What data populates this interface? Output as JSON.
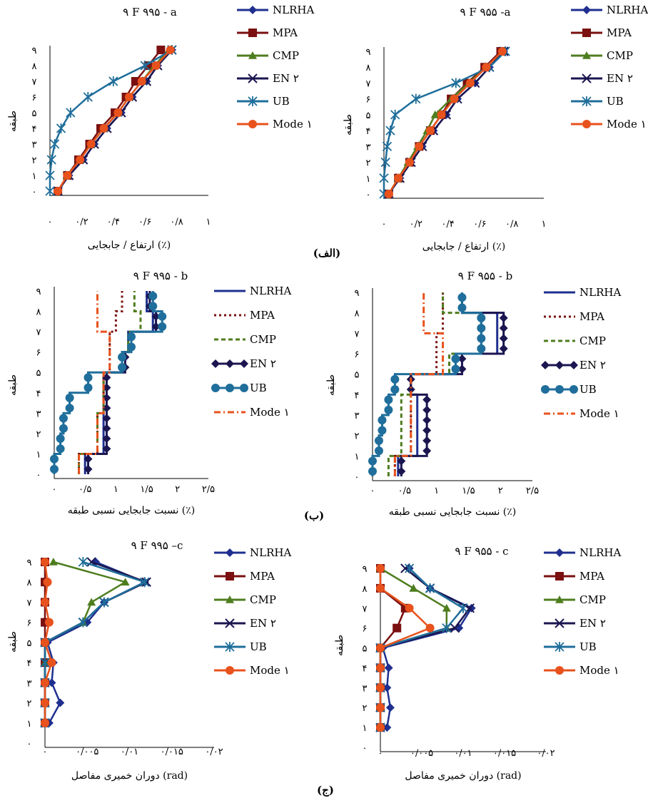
{
  "section_labels": [
    "(الف)",
    "(ب)",
    "(ج)"
  ],
  "series_style": {
    "NLRHA": {
      "color": "#1f2f8f",
      "marker": "diamond",
      "dash": ""
    },
    "MPA": {
      "color": "#7a1010",
      "marker": "square",
      "dash": "3,4"
    },
    "CMP": {
      "color": "#4e7d1e",
      "marker": "triangle",
      "dash": "6,4"
    },
    "EN2": {
      "color": "#1b1650",
      "marker": "x",
      "dash": ""
    },
    "UB": {
      "color": "#1f6e9b",
      "marker": "star",
      "dash": ""
    },
    "Mode1": {
      "color": "#e8521c",
      "marker": "circle",
      "dash": "9,4,2,4"
    }
  },
  "chart_data": [
    {
      "id": "a995",
      "type": "line",
      "title": "۹ F ۹۹۵ - a",
      "xlabel": "ارتفاع / جابجایی (٪)",
      "ylabel": "طبقه",
      "xlim": [
        0,
        1
      ],
      "ylim": [
        0,
        9
      ],
      "xticks": [
        {
          "v": 0,
          "l": "۰"
        },
        {
          "v": 0.2,
          "l": "۰/۲"
        },
        {
          "v": 0.4,
          "l": "۰/۴"
        },
        {
          "v": 0.6,
          "l": "۰/۶"
        },
        {
          "v": 0.8,
          "l": "۰/۸"
        },
        {
          "v": 1,
          "l": "۱"
        }
      ],
      "yticks": [
        "۰",
        "۱",
        "۲",
        "۳",
        "۴",
        "۵",
        "۶",
        "۷",
        "۸",
        "۹"
      ],
      "legend": [
        "NLRHA",
        "MPA",
        "CMP",
        "EN ۲",
        "UB",
        "Mode ۱"
      ],
      "series": [
        {
          "key": "NLRHA",
          "values": [
            0.05,
            0.12,
            0.21,
            0.28,
            0.36,
            0.45,
            0.52,
            0.61,
            0.68,
            0.77
          ]
        },
        {
          "key": "MPA",
          "values": [
            0.05,
            0.11,
            0.18,
            0.25,
            0.32,
            0.41,
            0.48,
            0.54,
            0.62,
            0.7
          ]
        },
        {
          "key": "CMP",
          "values": [
            0.05,
            0.11,
            0.19,
            0.26,
            0.34,
            0.43,
            0.5,
            0.58,
            0.66,
            0.75
          ]
        },
        {
          "key": "EN2",
          "values": [
            0.05,
            0.12,
            0.21,
            0.28,
            0.36,
            0.45,
            0.52,
            0.61,
            0.68,
            0.77
          ]
        },
        {
          "key": "UB",
          "values": [
            0.0,
            0.0,
            0.01,
            0.03,
            0.07,
            0.13,
            0.24,
            0.4,
            0.6,
            0.77
          ]
        },
        {
          "key": "Mode1",
          "values": [
            0.05,
            0.11,
            0.19,
            0.26,
            0.34,
            0.43,
            0.5,
            0.58,
            0.67,
            0.76
          ]
        }
      ]
    },
    {
      "id": "a955",
      "type": "line",
      "title": "۹ F ۹۵۵ -a",
      "xlabel": "ارتفاع / جابجایی (٪)",
      "ylabel": "طبقه",
      "xlim": [
        0,
        1
      ],
      "ylim": [
        0,
        9
      ],
      "xticks": [
        {
          "v": 0,
          "l": "۰"
        },
        {
          "v": 0.2,
          "l": "۰/۲"
        },
        {
          "v": 0.4,
          "l": "۰/۴"
        },
        {
          "v": 0.6,
          "l": "۰/۶"
        },
        {
          "v": 0.8,
          "l": "۰/۸"
        },
        {
          "v": 1,
          "l": "۱"
        }
      ],
      "yticks": [
        "۰",
        "۱",
        "۲",
        "۳",
        "۴",
        "۵",
        "۶",
        "۷",
        "۸",
        "۹"
      ],
      "legend": [
        "NLRHA",
        "MPA",
        "CMP",
        "EN ۲",
        "UB",
        "Mode ۱"
      ],
      "series": [
        {
          "key": "NLRHA",
          "values": [
            0.03,
            0.1,
            0.17,
            0.24,
            0.31,
            0.39,
            0.46,
            0.57,
            0.66,
            0.75
          ]
        },
        {
          "key": "MPA",
          "values": [
            0.03,
            0.09,
            0.16,
            0.22,
            0.29,
            0.36,
            0.42,
            0.52,
            0.63,
            0.73
          ]
        },
        {
          "key": "CMP",
          "values": [
            0.03,
            0.09,
            0.15,
            0.21,
            0.27,
            0.32,
            0.42,
            0.53,
            0.64,
            0.74
          ]
        },
        {
          "key": "EN2",
          "values": [
            0.03,
            0.1,
            0.17,
            0.24,
            0.31,
            0.39,
            0.46,
            0.57,
            0.66,
            0.75
          ]
        },
        {
          "key": "UB",
          "values": [
            0.0,
            0.0,
            0.01,
            0.02,
            0.04,
            0.07,
            0.2,
            0.45,
            0.66,
            0.76
          ]
        },
        {
          "key": "Mode1",
          "values": [
            0.03,
            0.09,
            0.16,
            0.22,
            0.29,
            0.36,
            0.44,
            0.54,
            0.64,
            0.74
          ]
        }
      ]
    },
    {
      "id": "b995",
      "type": "step",
      "title": "۹ F ۹۹۵ - b",
      "xlabel": "نسبت جابجایی نسبی طبقه (٪)",
      "ylabel": "طبقه",
      "xlim": [
        0,
        2.5
      ],
      "ylim": [
        0,
        9
      ],
      "xticks": [
        {
          "v": 0,
          "l": "۰"
        },
        {
          "v": 0.5,
          "l": "۰/۵"
        },
        {
          "v": 1,
          "l": "۱"
        },
        {
          "v": 1.5,
          "l": "۱/۵"
        },
        {
          "v": 2,
          "l": "۲"
        },
        {
          "v": 2.5,
          "l": "۲/۵"
        }
      ],
      "yticks": [
        "۰",
        "۱",
        "۲",
        "۳",
        "۴",
        "۵",
        "۶",
        "۷",
        "۸",
        "۹"
      ],
      "legend": [
        "NLRHA",
        "MPA",
        "CMP",
        "EN ۲",
        "UB",
        "Mode ۱"
      ],
      "series": [
        {
          "key": "NLRHA",
          "values": [
            0.5,
            0.8,
            0.8,
            0.8,
            0.8,
            1.1,
            1.2,
            1.6,
            1.5
          ]
        },
        {
          "key": "MPA",
          "values": [
            0.4,
            0.7,
            0.7,
            0.8,
            0.8,
            0.9,
            0.9,
            1.0,
            1.1
          ]
        },
        {
          "key": "CMP",
          "values": [
            0.4,
            0.7,
            0.7,
            0.8,
            0.8,
            1.1,
            1.2,
            1.4,
            1.3
          ]
        },
        {
          "key": "EN2",
          "values": [
            0.55,
            0.85,
            0.85,
            0.85,
            0.85,
            1.15,
            1.25,
            1.65,
            1.55
          ]
        },
        {
          "key": "UB",
          "values": [
            0.0,
            0.1,
            0.15,
            0.25,
            0.55,
            1.1,
            1.25,
            1.75,
            1.6
          ]
        },
        {
          "key": "Mode1",
          "values": [
            0.4,
            0.7,
            0.7,
            0.8,
            0.8,
            0.9,
            0.9,
            0.7,
            0.7
          ]
        }
      ]
    },
    {
      "id": "b955",
      "type": "step",
      "title": "۹ F ۹۵۵ - b",
      "xlabel": "نسبت جابجایی نسبی طبقه (٪)",
      "ylabel": "طبقه",
      "xlim": [
        0,
        2.5
      ],
      "ylim": [
        0,
        9
      ],
      "xticks": [
        {
          "v": 0,
          "l": "۰"
        },
        {
          "v": 0.5,
          "l": "۰/۵"
        },
        {
          "v": 1,
          "l": "۱"
        },
        {
          "v": 1.5,
          "l": "۱/۵"
        },
        {
          "v": 2,
          "l": "۲"
        },
        {
          "v": 2.5,
          "l": "۲/۵"
        }
      ],
      "yticks": [
        "۰",
        "۱",
        "۲",
        "۳",
        "۴",
        "۵",
        "۶",
        "۷",
        "۸",
        "۹"
      ],
      "legend": [
        "NLRHA",
        "MPA",
        "CMP",
        "EN ۲",
        "UB",
        "Mode ۱"
      ],
      "series": [
        {
          "key": "NLRHA",
          "values": [
            0.4,
            0.7,
            0.7,
            0.7,
            0.6,
            1.3,
            1.95,
            1.95,
            1.4
          ]
        },
        {
          "key": "MPA",
          "values": [
            0.35,
            0.6,
            0.6,
            0.6,
            0.6,
            1.0,
            1.0,
            1.1,
            1.1
          ]
        },
        {
          "key": "CMP",
          "values": [
            0.25,
            0.45,
            0.45,
            0.45,
            0.6,
            1.2,
            1.7,
            1.7,
            1.1
          ]
        },
        {
          "key": "EN2",
          "values": [
            0.45,
            0.85,
            0.85,
            0.85,
            0.6,
            1.4,
            2.05,
            2.05,
            1.4
          ]
        },
        {
          "key": "UB",
          "values": [
            0.0,
            0.1,
            0.15,
            0.25,
            0.35,
            1.3,
            1.7,
            1.7,
            1.4
          ]
        },
        {
          "key": "Mode1",
          "values": [
            0.35,
            0.6,
            0.6,
            0.6,
            0.6,
            1.1,
            1.1,
            0.8,
            0.8
          ]
        }
      ]
    },
    {
      "id": "c995",
      "type": "line",
      "title": "۹ F ۹۹۵ –c",
      "xlabel": "دوران خمیری مفاصل (rad)",
      "ylabel": "طبقه",
      "xlim": [
        0,
        0.02
      ],
      "ylim": [
        0,
        9
      ],
      "xticks": [
        {
          "v": 0,
          "l": "۰"
        },
        {
          "v": 0.005,
          "l": "۰/۰۰۵"
        },
        {
          "v": 0.01,
          "l": "۰/۰۱"
        },
        {
          "v": 0.015,
          "l": "۰/۰۱۵"
        },
        {
          "v": 0.02,
          "l": "۰/۰۲"
        }
      ],
      "yticks": [
        "۰",
        "۱",
        "۲",
        "۳",
        "۴",
        "۵",
        "۶",
        "۷",
        "۸",
        "۹"
      ],
      "legend": [
        "NLRHA",
        "MPA",
        "CMP",
        "EN ۲",
        "UB",
        "Mode ۱"
      ],
      "series": [
        {
          "key": "NLRHA",
          "values": [
            null,
            0.0005,
            0.0018,
            0.0008,
            0.001,
            0.0003,
            0.005,
            0.007,
            0.0118,
            0.006
          ]
        },
        {
          "key": "MPA",
          "values": [
            null,
            0.0,
            0.0,
            0.0,
            0.0,
            0.0,
            0.0,
            0.0,
            0.0,
            0.0
          ]
        },
        {
          "key": "CMP",
          "values": [
            null,
            0.0,
            0.0,
            0.0,
            0.0,
            0.0,
            0.0045,
            0.0055,
            0.0095,
            0.001
          ]
        },
        {
          "key": "EN2",
          "values": [
            null,
            0.0,
            0.0,
            0.0,
            0.0,
            0.0,
            0.0045,
            0.007,
            0.012,
            0.0055
          ]
        },
        {
          "key": "UB",
          "values": [
            null,
            0.0,
            0.0,
            0.0,
            0.0,
            0.0,
            0.0045,
            0.007,
            0.0118,
            0.0045
          ]
        },
        {
          "key": "Mode1",
          "values": [
            null,
            0.0,
            0.0,
            0.0,
            0.0008,
            0.0,
            0.0005,
            0.0,
            0.0003,
            0.0
          ]
        }
      ]
    },
    {
      "id": "c955",
      "type": "line",
      "title": "۹ F ۹۵۵ - c",
      "xlabel": "دوران خمیری مفاصل (rad)",
      "ylabel": "طبقه",
      "xlim": [
        0,
        0.02
      ],
      "ylim": [
        0,
        9
      ],
      "xticks": [
        {
          "v": 0,
          "l": "۰"
        },
        {
          "v": 0.005,
          "l": "۰/۰۰۵"
        },
        {
          "v": 0.01,
          "l": "۰/۰۱"
        },
        {
          "v": 0.015,
          "l": "۰/۰۱۵"
        },
        {
          "v": 0.02,
          "l": "۰/۰۲"
        }
      ],
      "yticks": [
        "۰",
        "۱",
        "۲",
        "۳",
        "۴",
        "۵",
        "۶",
        "۷",
        "۸",
        "۹"
      ],
      "legend": [
        "NLRHA",
        "MPA",
        "CMP",
        "EN ۲",
        "UB",
        "Mode ۱"
      ],
      "series": [
        {
          "key": "NLRHA",
          "values": [
            null,
            0.0008,
            0.0012,
            0.0008,
            0.001,
            0.0003,
            0.0095,
            0.011,
            0.006,
            0.0035
          ]
        },
        {
          "key": "MPA",
          "values": [
            null,
            0.0,
            0.0,
            0.0,
            0.0,
            0.0,
            0.002,
            0.003,
            0.0,
            0.0
          ]
        },
        {
          "key": "CMP",
          "values": [
            null,
            0.0,
            0.0,
            0.0,
            0.0,
            0.0,
            0.008,
            0.008,
            0.004,
            0.0
          ]
        },
        {
          "key": "EN2",
          "values": [
            null,
            0.0,
            0.0,
            0.0,
            0.0,
            0.0,
            0.009,
            0.0108,
            0.006,
            0.003
          ]
        },
        {
          "key": "UB",
          "values": [
            null,
            0.0,
            0.0,
            0.0,
            0.0,
            0.0,
            0.008,
            0.01,
            0.006,
            0.0035
          ]
        },
        {
          "key": "Mode1",
          "values": [
            null,
            0.0,
            0.0,
            0.0,
            0.0,
            0.0,
            0.006,
            0.0035,
            0.0,
            0.0
          ]
        }
      ]
    }
  ]
}
